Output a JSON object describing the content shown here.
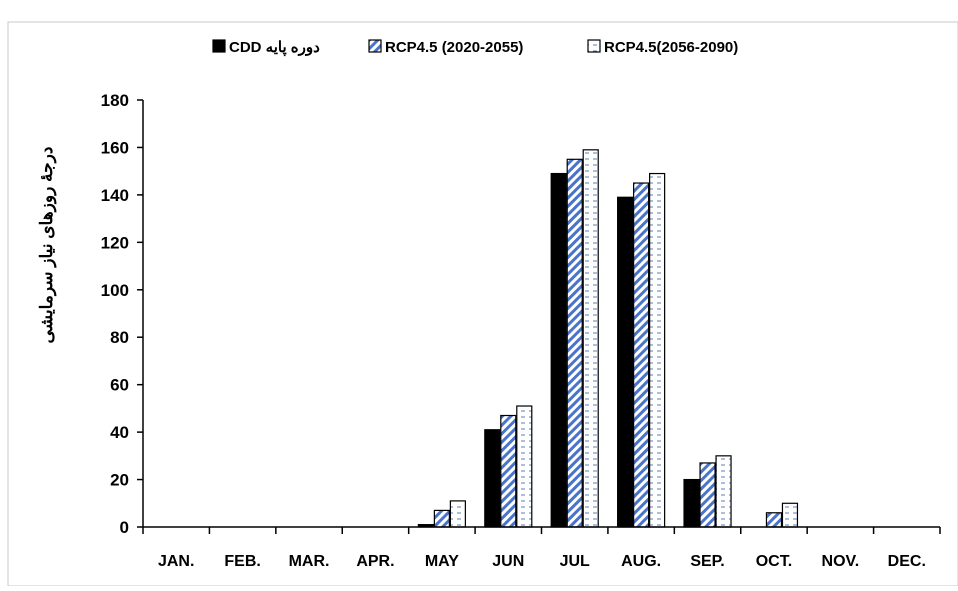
{
  "chart_data": {
    "type": "bar",
    "title": "",
    "xlabel": "",
    "ylabel": "درجهٔ روزهای نیاز سرمایشی",
    "ylim": [
      0,
      180
    ],
    "yticks": [
      0,
      20,
      40,
      60,
      80,
      100,
      120,
      140,
      160,
      180
    ],
    "grid": false,
    "legend_position": "top",
    "categories": [
      "JAN.",
      "FEB.",
      "MAR.",
      "APR.",
      "MAY",
      "JUN",
      "JUL",
      "AUG.",
      "SEP.",
      "OCT.",
      "NOV.",
      "DEC."
    ],
    "series": [
      {
        "name": "CDD دوره پایه",
        "fill": "solid",
        "color": "#000000",
        "values": [
          0,
          0,
          0,
          0,
          1,
          41,
          149,
          139,
          20,
          0,
          0,
          0
        ]
      },
      {
        "name": "RCP4.5 (2020-2055)",
        "fill": "diagonal-stripes",
        "color": "#4a74c9",
        "values": [
          0,
          0,
          0,
          0,
          7,
          47,
          155,
          145,
          27,
          6,
          0,
          0
        ]
      },
      {
        "name": "RCP4.5(2056-2090)",
        "fill": "horizontal-dashes",
        "color": "#5a7fb8",
        "values": [
          0,
          0,
          0,
          0,
          11,
          51,
          159,
          149,
          30,
          10,
          0,
          0
        ]
      }
    ]
  }
}
